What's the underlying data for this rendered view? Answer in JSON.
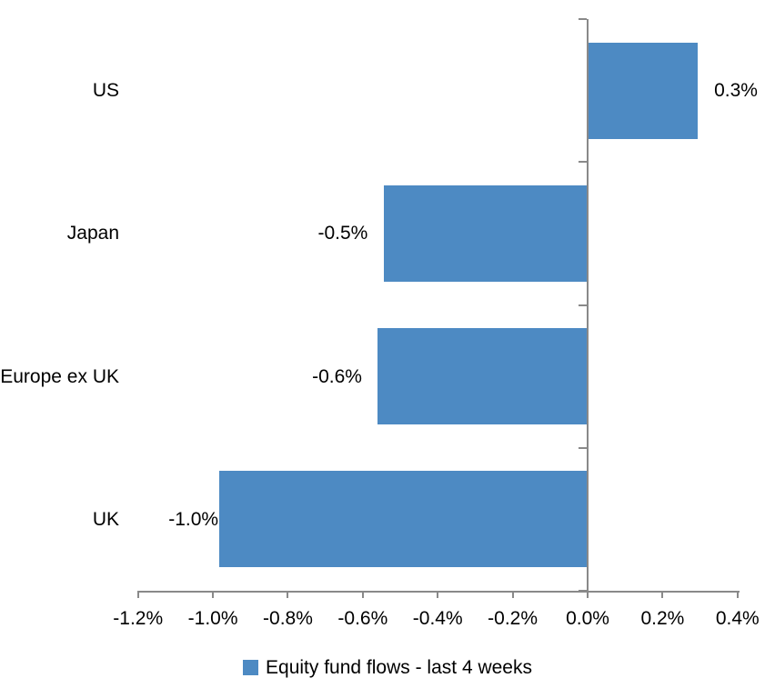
{
  "chart_data": {
    "type": "bar",
    "orientation": "horizontal",
    "categories": [
      "US",
      "Japan",
      "Europe ex UK",
      "UK"
    ],
    "values": [
      0.3,
      -0.5,
      -0.6,
      -1.0
    ],
    "values_precise_pct": [
      0.294,
      -0.543,
      -0.561,
      -0.983
    ],
    "bar_labels": [
      "0.3%",
      "-0.5%",
      "-0.6%",
      "-1.0%"
    ],
    "x_axis": {
      "unit": "%",
      "min": -1.2,
      "max": 0.4,
      "tick_values": [
        -1.2,
        -1.0,
        -0.8,
        -0.6,
        -0.4,
        -0.2,
        0.0,
        0.2,
        0.4
      ],
      "tick_labels": [
        "-1.2%",
        "-1.0%",
        "-0.8%",
        "-0.6%",
        "-0.4%",
        "-0.2%",
        "0.0%",
        "0.2%",
        "0.4%"
      ]
    },
    "legend": {
      "label": "Equity fund flows - last 4 weeks",
      "position": "bottom",
      "marker": "square-icon"
    },
    "grid": false,
    "colors": {
      "bar": "#4D8AC3",
      "axis": "#898989",
      "text": "#000000",
      "background": "#FFFFFF"
    }
  }
}
